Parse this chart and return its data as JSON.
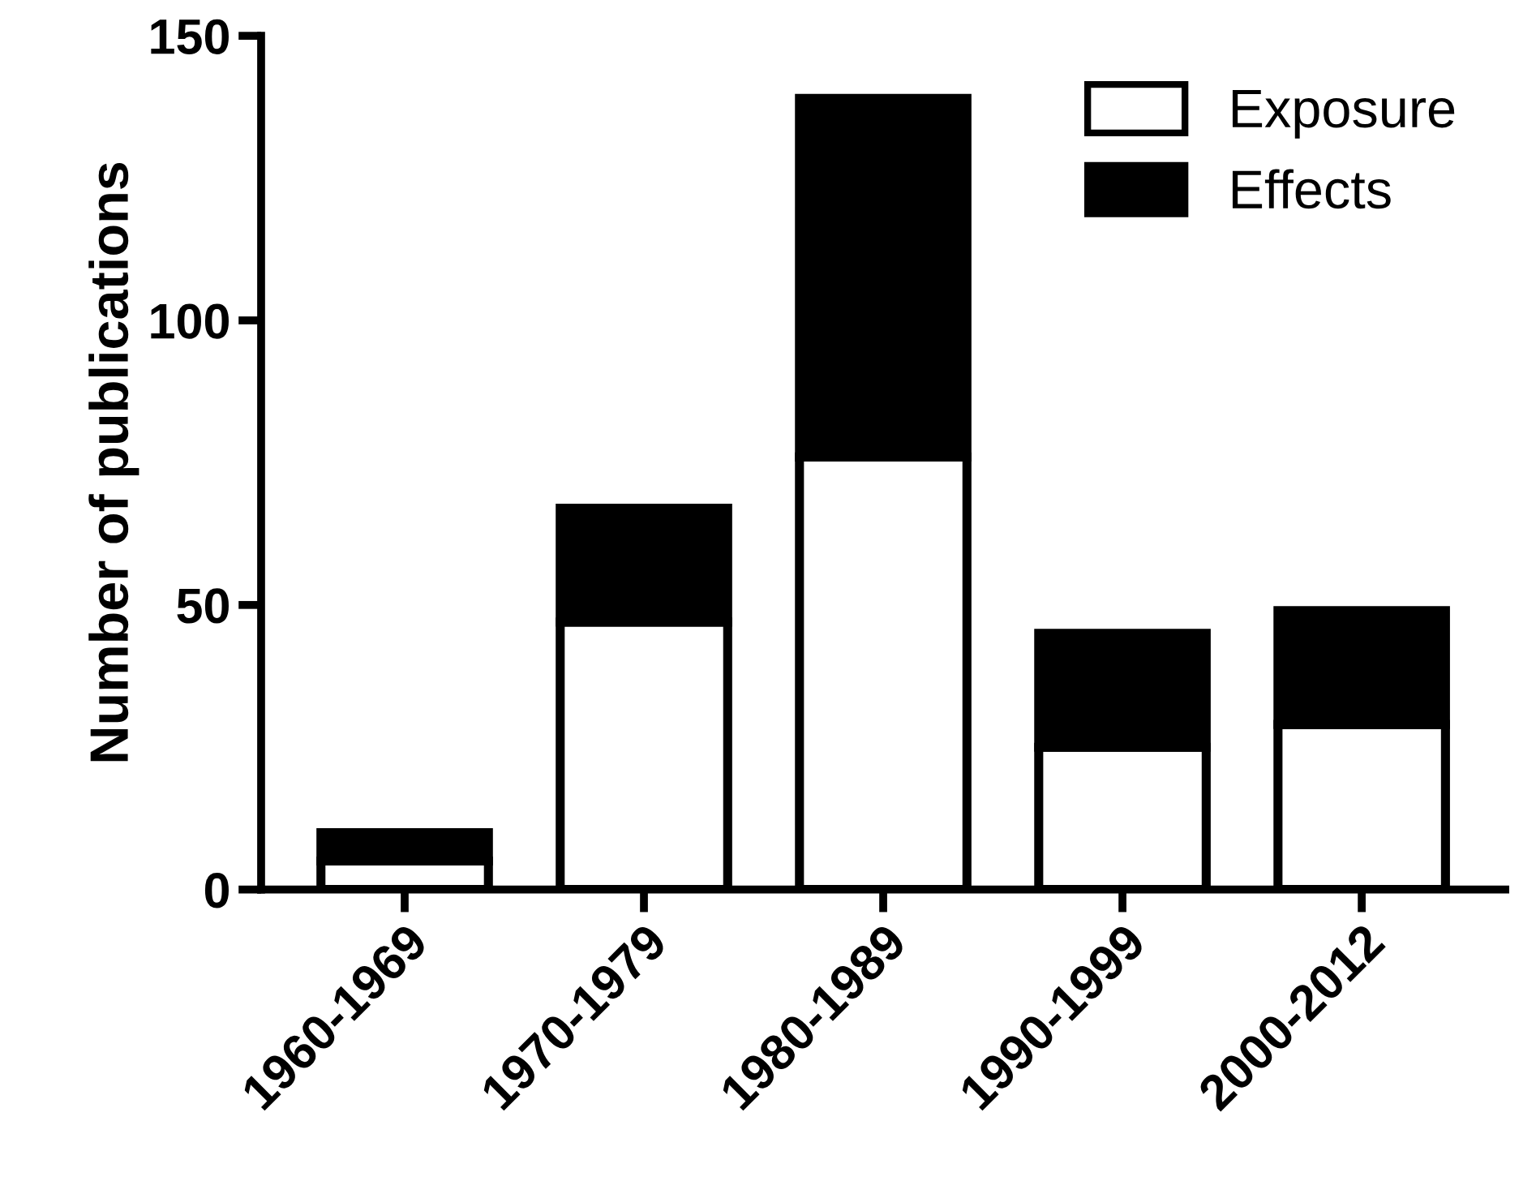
{
  "chart_data": {
    "type": "bar",
    "stacked": true,
    "ylabel": "Number of publications",
    "categories": [
      "1960-1969",
      "1970-1979",
      "1980-1989",
      "1990-1999",
      "2000-2012"
    ],
    "series": [
      {
        "name": "Exposure",
        "color": "#ffffff",
        "values": [
          5,
          47,
          76,
          25,
          29
        ]
      },
      {
        "name": "Effects",
        "color": "#000000",
        "values": [
          5,
          20,
          63,
          20,
          20
        ]
      }
    ],
    "ylim": [
      0,
      150
    ],
    "yticks": [
      0,
      50,
      100,
      150
    ],
    "grid": false,
    "legend": "top right"
  }
}
